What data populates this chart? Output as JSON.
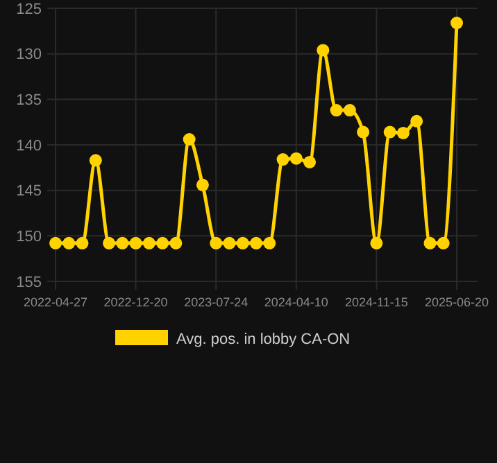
{
  "chart_data": {
    "type": "line",
    "categories": [
      "2022-04-27",
      null,
      null,
      null,
      null,
      null,
      "2022-12-20",
      null,
      null,
      null,
      null,
      null,
      "2023-07-24",
      null,
      null,
      null,
      null,
      null,
      "2024-04-10",
      null,
      null,
      null,
      null,
      null,
      "2024-11-15",
      null,
      null,
      null,
      null,
      null,
      "2025-06-20"
    ],
    "series": [
      {
        "name": "Avg. pos. in lobby CA-ON",
        "color": "#ffd200",
        "values": [
          150.8,
          150.8,
          150.8,
          141.7,
          150.8,
          150.8,
          150.8,
          150.8,
          150.8,
          150.8,
          139.4,
          144.4,
          150.8,
          150.8,
          150.8,
          150.8,
          150.8,
          141.6,
          141.5,
          141.9,
          129.6,
          136.2,
          136.2,
          138.6,
          150.8,
          138.6,
          138.7,
          137.4,
          150.8,
          150.8,
          126.6
        ]
      }
    ],
    "ylim": [
      155,
      125
    ],
    "yticks": [
      125,
      130,
      135,
      140,
      145,
      150,
      155
    ],
    "grid": true,
    "legend": "bottom",
    "marker": "circle",
    "line_style": "solid"
  }
}
